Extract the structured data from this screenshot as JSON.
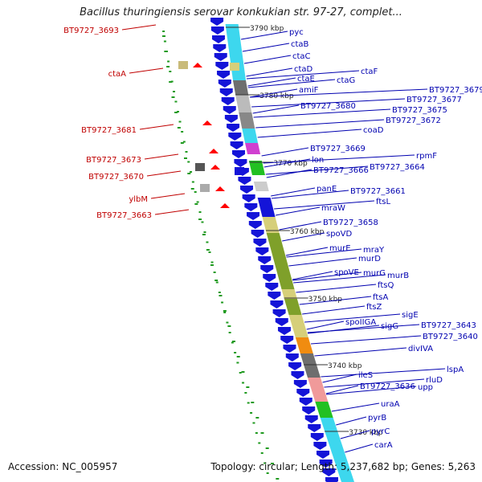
{
  "title": "Bacillus thuringiensis serovar konkukian str. 97-27, complet...",
  "footer": {
    "accession": "Accession: NC_005957",
    "summary": "Topology: circular; Length: 5,237,682 bp; Genes: 5,263"
  },
  "colors": {
    "backbone": "#7f7f7f",
    "forward_gene": "#1414d8",
    "reverse_gene": "#ff0000",
    "forward_label": "#0000b0",
    "reverse_label": "#c00000",
    "orf_tick": "#1f9a1f",
    "cds_cyan": "#3dd7ee",
    "cds_olive": "#7fa02a",
    "cds_khaki": "#d6cf7a",
    "cds_orange": "#f08c10",
    "cds_pink": "#f09a9a",
    "cds_gray": "#6e6e6e"
  },
  "scale_labels": [
    "3790 kbp",
    "3780 kbp",
    "3770 kbp",
    "3760 kbp",
    "3750 kbp",
    "3740 kbp",
    "3730 kbp"
  ],
  "forward_genes": [
    "pyc",
    "ctaB",
    "ctaC",
    "ctaD",
    "ctaF",
    "ctaE",
    "ctaG",
    "amiF",
    "BT9727_3679",
    "BT9727_3677",
    "BT9727_3680",
    "BT9727_3675",
    "BT9727_3672",
    "coaD",
    "BT9727_3669",
    "rpmF",
    "lon",
    "BT9727_3666",
    "BT9727_3664",
    "panE",
    "BT9727_3661",
    "ftsL",
    "mraW",
    "BT9727_3658",
    "spoVD",
    "murE",
    "mraY",
    "murD",
    "spoVE",
    "murG",
    "murB",
    "ftsQ",
    "ftsA",
    "ftsZ",
    "sigE",
    "spoIIGA",
    "sigG",
    "BT9727_3643",
    "BT9727_3640",
    "divIVA",
    "lspA",
    "ileS",
    "rluD",
    "BT9727_3636",
    "upp",
    "uraA",
    "pyrB",
    "pyrC",
    "carA"
  ],
  "reverse_genes": [
    "BT9727_3693",
    "ctaA",
    "BT9727_3681",
    "BT9727_3673",
    "BT9727_3670",
    "ylbM",
    "BT9727_3663"
  ]
}
